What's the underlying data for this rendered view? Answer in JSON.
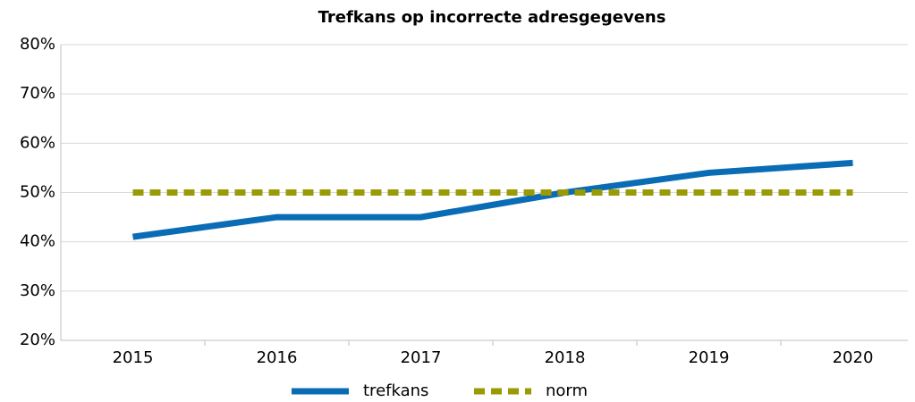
{
  "chart_data": {
    "type": "line",
    "title": "Trefkans op incorrecte adresgegevens",
    "categories": [
      "2015",
      "2016",
      "2017",
      "2018",
      "2019",
      "2020"
    ],
    "series": [
      {
        "name": "trefkans",
        "color": "#0a6cb4",
        "dash": false,
        "values": [
          41,
          45,
          45,
          50,
          54,
          56
        ]
      },
      {
        "name": "norm",
        "color": "#999a04",
        "dash": true,
        "values": [
          50,
          50,
          50,
          50,
          50,
          50
        ]
      }
    ],
    "ylim": [
      20,
      80
    ],
    "yticks": [
      {
        "value": 20,
        "label": "20%"
      },
      {
        "value": 30,
        "label": "30%"
      },
      {
        "value": 40,
        "label": "40%"
      },
      {
        "value": 50,
        "label": "50%"
      },
      {
        "value": 60,
        "label": "60%"
      },
      {
        "value": 70,
        "label": "70%"
      },
      {
        "value": 80,
        "label": "80%"
      }
    ],
    "grid": true
  }
}
